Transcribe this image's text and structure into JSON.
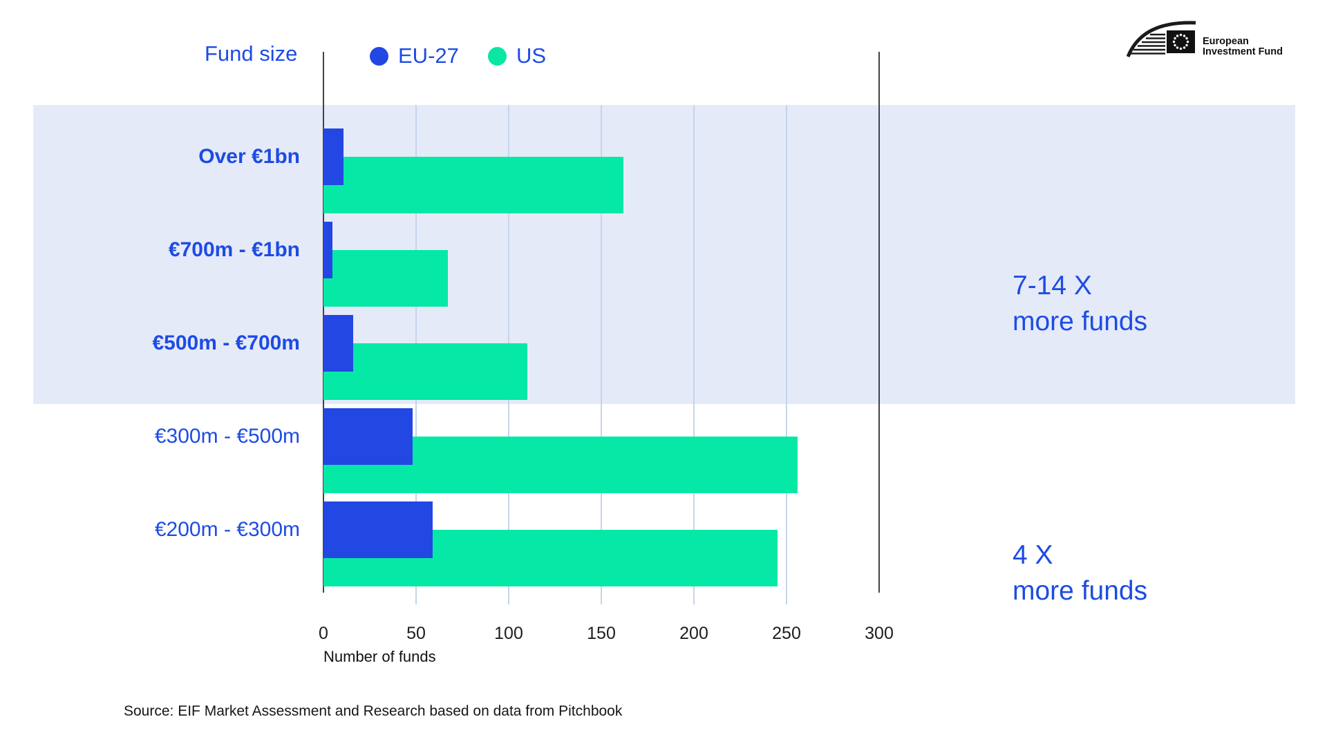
{
  "header": {
    "fund_size_label": "Fund size",
    "legend": [
      {
        "label": "EU-27",
        "color": "#2347e3"
      },
      {
        "label": "US",
        "color": "#0ae6a3"
      }
    ]
  },
  "logo": {
    "line1": "European",
    "line2": "Investment Fund"
  },
  "chart_data": {
    "type": "bar",
    "orientation": "horizontal",
    "title": "",
    "categories": [
      "Over €1bn",
      "€700m - €1bn",
      "€500m - €700m",
      "€300m - €500m",
      "€200m - €300m"
    ],
    "series": [
      {
        "name": "EU-27",
        "color": "#2347e3",
        "values": [
          11,
          5,
          16,
          48,
          59
        ]
      },
      {
        "name": "US",
        "color": "#06e9a6",
        "values": [
          162,
          67,
          110,
          256,
          245
        ]
      }
    ],
    "xlabel": "Number of funds",
    "x_ticks": [
      0,
      50,
      100,
      150,
      200,
      250,
      300
    ],
    "xlim": [
      0,
      300
    ],
    "grid": true,
    "highlighted_category_rows": [
      0,
      1,
      2
    ],
    "highlight_color": "#e5eaf8",
    "gridline_color": "#c6d4ea",
    "reference_line_color": "#3f4247"
  },
  "annotations": [
    {
      "line1": "7-14 X",
      "line2": "more funds"
    },
    {
      "line1": "4 X",
      "line2": "more funds"
    }
  ],
  "source": "Source: EIF Market Assessment and Research based on data from Pitchbook"
}
